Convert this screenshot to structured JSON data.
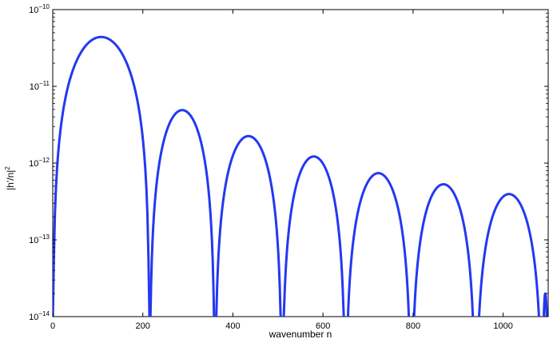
{
  "chart_data": {
    "type": "line",
    "title": "",
    "xlabel": "wavenumber n",
    "ylabel": "|h'/n|",
    "ylabel_superscript": "2",
    "xlim": [
      0,
      1100
    ],
    "ylim": [
      1e-14,
      1e-10
    ],
    "yscale": "log",
    "grid": false,
    "x_ticks": [
      0,
      200,
      400,
      600,
      800,
      1000
    ],
    "x_tick_labels": [
      "0",
      "200",
      "400",
      "600",
      "800",
      "1000"
    ],
    "y_ticks": [
      1e-14,
      1e-13,
      1e-12,
      1e-11,
      1e-10
    ],
    "y_tick_labels": [
      {
        "base": "10",
        "exp": "−14"
      },
      {
        "base": "10",
        "exp": "−13"
      },
      {
        "base": "10",
        "exp": "−12"
      },
      {
        "base": "10",
        "exp": "−11"
      },
      {
        "base": "10",
        "exp": "−10"
      }
    ],
    "series": [
      {
        "color": "#2438f0",
        "lobes": [
          {
            "start": 0,
            "end": 215,
            "peak_x": 98,
            "peak_y": 4.4e-11
          },
          {
            "start": 215,
            "end": 360,
            "peak_x": 278,
            "peak_y": 4.9e-12
          },
          {
            "start": 360,
            "end": 509,
            "peak_x": 428,
            "peak_y": 2.25e-12
          },
          {
            "start": 509,
            "end": 650,
            "peak_x": 576,
            "peak_y": 1.22e-12
          },
          {
            "start": 650,
            "end": 796,
            "peak_x": 721,
            "peak_y": 7.4e-13
          },
          {
            "start": 796,
            "end": 939,
            "peak_x": 867,
            "peak_y": 5.3e-13
          },
          {
            "start": 939,
            "end": 1087,
            "peak_x": 1014,
            "peak_y": 3.95e-13
          },
          {
            "start": 1087,
            "end": 1100,
            "peak_x": 1100,
            "peak_y": 2e-14
          }
        ]
      }
    ]
  }
}
